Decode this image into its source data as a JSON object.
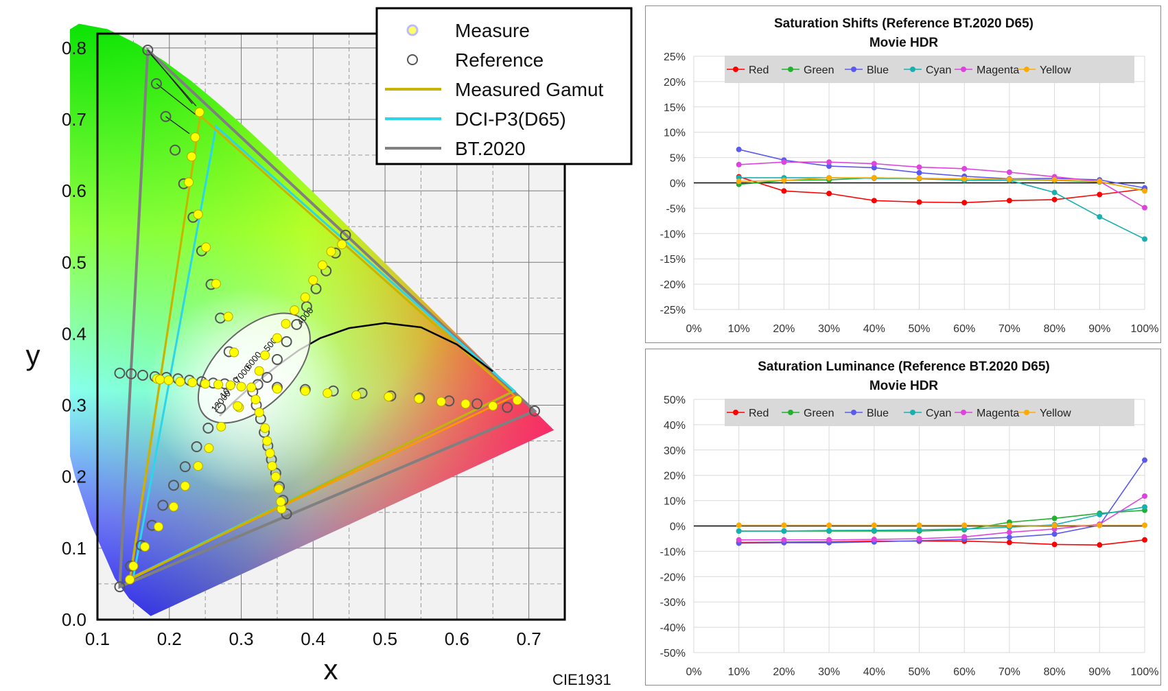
{
  "cie_chart": {
    "xlabel": "x",
    "ylabel": "y",
    "footer": "CIE1931",
    "xlim": [
      0.1,
      0.75
    ],
    "ylim": [
      0.0,
      0.82
    ],
    "x_ticks": [
      "0.1",
      "0.2",
      "0.3",
      "0.4",
      "0.5",
      "0.6",
      "0.7"
    ],
    "y_ticks": [
      "0.0",
      "0.1",
      "0.2",
      "0.3",
      "0.4",
      "0.5",
      "0.6",
      "0.7",
      "0.8"
    ],
    "legend": [
      {
        "label": "Measure",
        "kind": "measure"
      },
      {
        "label": "Reference",
        "kind": "reference"
      },
      {
        "label": "Measured Gamut",
        "kind": "line",
        "color": "#c8b400"
      },
      {
        "label": "DCI-P3(D65)",
        "kind": "line",
        "color": "#2bd6e8"
      },
      {
        "label": "BT.2020",
        "kind": "line",
        "color": "#808080"
      }
    ],
    "colors": {
      "measured_gamut": "#c8b400",
      "orange_gamut": "#ff9900",
      "dci_p3": "#2bd6e8",
      "bt2020": "#808080",
      "measure_fill": "#ffff00"
    },
    "cct_labels": [
      "4000",
      "5000",
      "6000",
      "7000",
      "10000",
      "12000"
    ],
    "gamuts": {
      "bt2020": [
        [
          0.708,
          0.292
        ],
        [
          0.17,
          0.797
        ],
        [
          0.131,
          0.046
        ]
      ],
      "dci_p3": [
        [
          0.68,
          0.32
        ],
        [
          0.265,
          0.69
        ],
        [
          0.15,
          0.06
        ]
      ],
      "measured": [
        [
          0.675,
          0.318
        ],
        [
          0.243,
          0.705
        ],
        [
          0.145,
          0.056
        ]
      ]
    },
    "reference_points": [
      [
        0.17,
        0.797
      ],
      [
        0.182,
        0.75
      ],
      [
        0.195,
        0.704
      ],
      [
        0.208,
        0.657
      ],
      [
        0.22,
        0.61
      ],
      [
        0.233,
        0.563
      ],
      [
        0.245,
        0.516
      ],
      [
        0.258,
        0.469
      ],
      [
        0.271,
        0.422
      ],
      [
        0.283,
        0.375
      ],
      [
        0.131,
        0.046
      ],
      [
        0.146,
        0.075
      ],
      [
        0.161,
        0.104
      ],
      [
        0.176,
        0.132
      ],
      [
        0.191,
        0.16
      ],
      [
        0.206,
        0.188
      ],
      [
        0.222,
        0.214
      ],
      [
        0.238,
        0.242
      ],
      [
        0.254,
        0.268
      ],
      [
        0.271,
        0.296
      ],
      [
        0.708,
        0.292
      ],
      [
        0.67,
        0.297
      ],
      [
        0.628,
        0.302
      ],
      [
        0.589,
        0.306
      ],
      [
        0.548,
        0.31
      ],
      [
        0.508,
        0.313
      ],
      [
        0.468,
        0.317
      ],
      [
        0.428,
        0.32
      ],
      [
        0.389,
        0.322
      ],
      [
        0.35,
        0.325
      ],
      [
        0.445,
        0.538
      ],
      [
        0.431,
        0.513
      ],
      [
        0.418,
        0.488
      ],
      [
        0.404,
        0.463
      ],
      [
        0.391,
        0.438
      ],
      [
        0.377,
        0.413
      ],
      [
        0.363,
        0.389
      ],
      [
        0.35,
        0.364
      ],
      [
        0.336,
        0.339
      ],
      [
        0.323,
        0.329
      ],
      [
        0.363,
        0.148
      ],
      [
        0.358,
        0.167
      ],
      [
        0.353,
        0.186
      ],
      [
        0.348,
        0.205
      ],
      [
        0.342,
        0.224
      ],
      [
        0.337,
        0.243
      ],
      [
        0.332,
        0.262
      ],
      [
        0.327,
        0.281
      ],
      [
        0.321,
        0.3
      ],
      [
        0.316,
        0.319
      ],
      [
        0.131,
        0.345
      ],
      [
        0.147,
        0.344
      ],
      [
        0.163,
        0.342
      ],
      [
        0.18,
        0.34
      ],
      [
        0.196,
        0.339
      ],
      [
        0.212,
        0.337
      ],
      [
        0.228,
        0.335
      ],
      [
        0.245,
        0.333
      ],
      [
        0.261,
        0.331
      ],
      [
        0.277,
        0.33
      ]
    ],
    "measure_points": [
      [
        0.242,
        0.71
      ],
      [
        0.236,
        0.675
      ],
      [
        0.231,
        0.648
      ],
      [
        0.227,
        0.612
      ],
      [
        0.24,
        0.567
      ],
      [
        0.251,
        0.521
      ],
      [
        0.265,
        0.47
      ],
      [
        0.282,
        0.424
      ],
      [
        0.29,
        0.374
      ],
      [
        0.297,
        0.297
      ],
      [
        0.145,
        0.056
      ],
      [
        0.15,
        0.075
      ],
      [
        0.166,
        0.102
      ],
      [
        0.185,
        0.13
      ],
      [
        0.206,
        0.158
      ],
      [
        0.222,
        0.187
      ],
      [
        0.24,
        0.215
      ],
      [
        0.255,
        0.24
      ],
      [
        0.272,
        0.27
      ],
      [
        0.295,
        0.299
      ],
      [
        0.684,
        0.307
      ],
      [
        0.65,
        0.299
      ],
      [
        0.612,
        0.302
      ],
      [
        0.578,
        0.305
      ],
      [
        0.547,
        0.309
      ],
      [
        0.505,
        0.312
      ],
      [
        0.46,
        0.314
      ],
      [
        0.42,
        0.317
      ],
      [
        0.389,
        0.32
      ],
      [
        0.35,
        0.323
      ],
      [
        0.44,
        0.525
      ],
      [
        0.425,
        0.515
      ],
      [
        0.413,
        0.496
      ],
      [
        0.4,
        0.475
      ],
      [
        0.389,
        0.451
      ],
      [
        0.374,
        0.433
      ],
      [
        0.362,
        0.414
      ],
      [
        0.35,
        0.394
      ],
      [
        0.333,
        0.37
      ],
      [
        0.325,
        0.348
      ],
      [
        0.356,
        0.155
      ],
      [
        0.355,
        0.165
      ],
      [
        0.352,
        0.183
      ],
      [
        0.348,
        0.2
      ],
      [
        0.343,
        0.215
      ],
      [
        0.34,
        0.233
      ],
      [
        0.336,
        0.25
      ],
      [
        0.333,
        0.268
      ],
      [
        0.325,
        0.29
      ],
      [
        0.32,
        0.308
      ],
      [
        0.183,
        0.337
      ],
      [
        0.187,
        0.336
      ],
      [
        0.199,
        0.335
      ],
      [
        0.215,
        0.333
      ],
      [
        0.232,
        0.332
      ],
      [
        0.25,
        0.33
      ],
      [
        0.268,
        0.329
      ],
      [
        0.285,
        0.328
      ],
      [
        0.3,
        0.326
      ],
      [
        0.314,
        0.325
      ]
    ]
  },
  "chart_data": [
    {
      "type": "line",
      "title": "Saturation Shifts (Reference BT.2020 D65)",
      "subtitle": "Movie HDR",
      "x": [
        "0%",
        "10%",
        "20%",
        "30%",
        "40%",
        "50%",
        "60%",
        "70%",
        "80%",
        "90%",
        "100%"
      ],
      "y_ticks": [
        "25%",
        "20%",
        "15%",
        "10%",
        "5%",
        "0%",
        "-5%",
        "-10%",
        "-15%",
        "-20%",
        "-25%"
      ],
      "ylim": [
        -25,
        25
      ],
      "legend_position": "top",
      "series": [
        {
          "name": "Red",
          "color": "#ff0000",
          "values": [
            null,
            1.2,
            -1.6,
            -2.1,
            -3.5,
            -3.8,
            -3.9,
            -3.5,
            -3.3,
            -2.3,
            -1.2
          ]
        },
        {
          "name": "Green",
          "color": "#22b030",
          "values": [
            null,
            -0.3,
            0.5,
            0.6,
            1.0,
            0.9,
            0.8,
            0.6,
            0.5,
            0.2,
            -1.5
          ]
        },
        {
          "name": "Blue",
          "color": "#5a5aee",
          "values": [
            null,
            6.6,
            4.5,
            3.3,
            3.0,
            2.0,
            1.3,
            0.8,
            0.9,
            0.6,
            -1.0
          ]
        },
        {
          "name": "Cyan",
          "color": "#17b0b0",
          "values": [
            null,
            1.0,
            1.0,
            1.0,
            0.9,
            0.8,
            0.5,
            0.5,
            -1.9,
            -6.7,
            -11.1
          ]
        },
        {
          "name": "Magenta",
          "color": "#dd44dd",
          "values": [
            null,
            3.6,
            4.1,
            4.1,
            3.8,
            3.1,
            2.8,
            2.1,
            1.2,
            0.3,
            -4.9
          ]
        },
        {
          "name": "Yellow",
          "color": "#ffaa00",
          "values": [
            null,
            0.3,
            0.5,
            1.0,
            1.0,
            0.9,
            0.8,
            0.7,
            0.6,
            0.3,
            -1.6
          ]
        }
      ]
    },
    {
      "type": "line",
      "title": "Saturation Luminance (Reference BT.2020 D65)",
      "subtitle": "Movie HDR",
      "x": [
        "0%",
        "10%",
        "20%",
        "30%",
        "40%",
        "50%",
        "60%",
        "70%",
        "80%",
        "90%",
        "100%"
      ],
      "y_ticks": [
        "50%",
        "40%",
        "30%",
        "20%",
        "10%",
        "0%",
        "-10%",
        "-20%",
        "-30%",
        "-40%",
        "-50%"
      ],
      "ylim": [
        -50,
        50
      ],
      "legend_position": "top",
      "series": [
        {
          "name": "Red",
          "color": "#ff0000",
          "values": [
            null,
            -6.5,
            -6.4,
            -6.3,
            -6.0,
            -6.0,
            -6.0,
            -6.5,
            -7.3,
            -7.5,
            -5.5
          ]
        },
        {
          "name": "Green",
          "color": "#22b030",
          "values": [
            null,
            -2.0,
            -2.0,
            -2.0,
            -2.0,
            -2.0,
            -1.5,
            1.5,
            3.0,
            5.0,
            6.2
          ]
        },
        {
          "name": "Blue",
          "color": "#5a5aee",
          "values": [
            null,
            -6.8,
            -6.6,
            -6.6,
            -6.3,
            -5.8,
            -5.3,
            -4.5,
            -3.2,
            0.3,
            26.0
          ]
        },
        {
          "name": "Cyan",
          "color": "#17b0b0",
          "values": [
            null,
            -2.0,
            -2.0,
            -1.8,
            -1.7,
            -1.5,
            -1.2,
            -0.5,
            0.5,
            4.5,
            7.5
          ]
        },
        {
          "name": "Magenta",
          "color": "#dd44dd",
          "values": [
            null,
            -5.5,
            -5.5,
            -5.5,
            -5.3,
            -5.0,
            -4.3,
            -2.5,
            -1.2,
            0.7,
            11.8
          ]
        },
        {
          "name": "Yellow",
          "color": "#ffaa00",
          "values": [
            null,
            0.3,
            0.3,
            0.3,
            0.3,
            0.3,
            0.3,
            0.2,
            0.2,
            0.3,
            0.3
          ]
        }
      ]
    }
  ]
}
